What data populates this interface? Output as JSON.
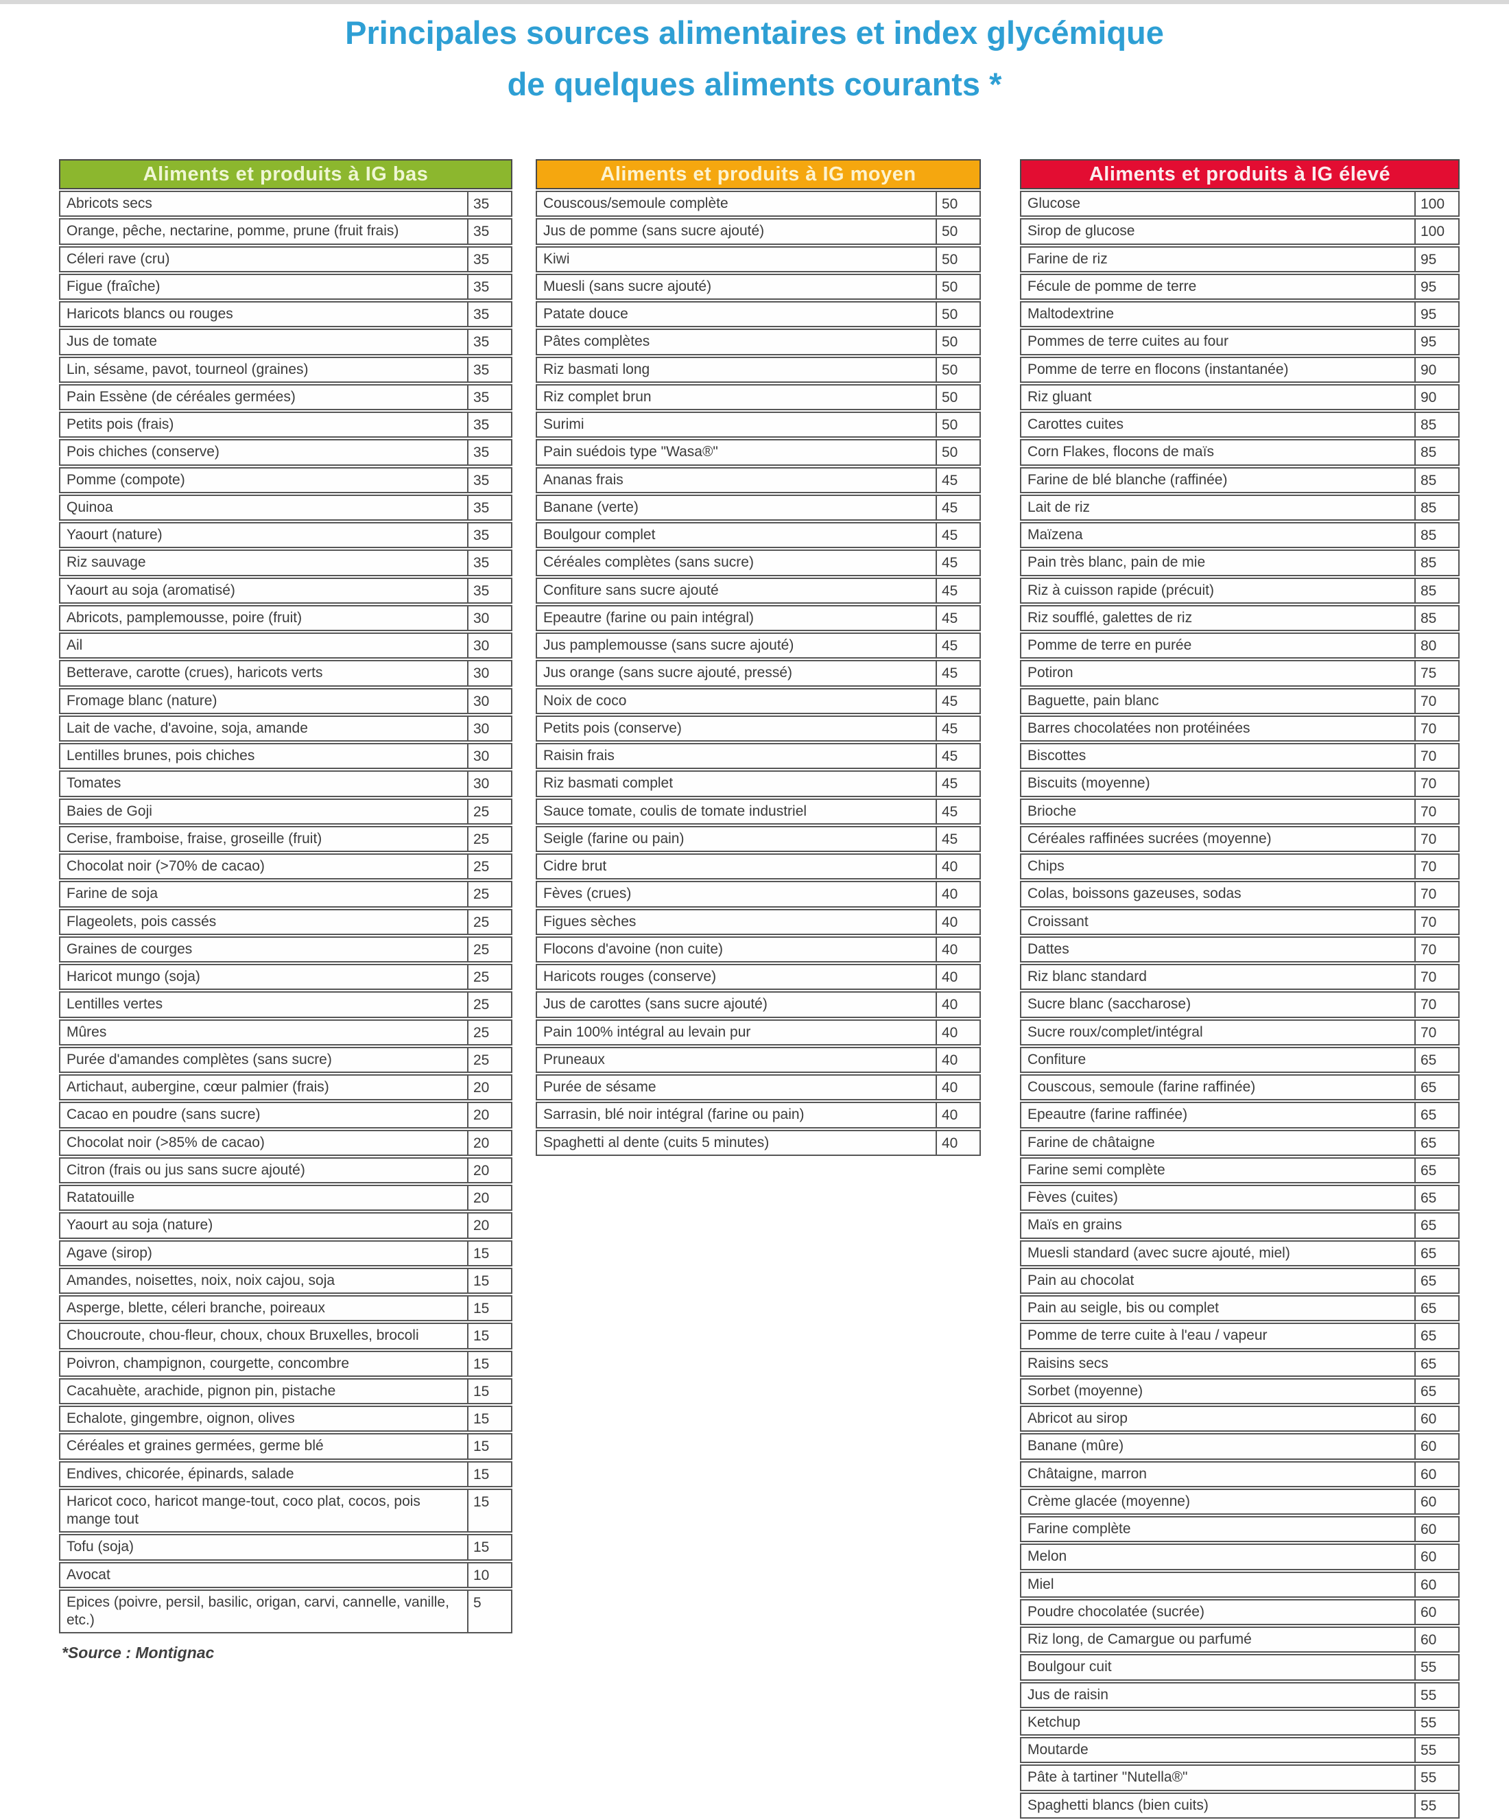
{
  "title": {
    "line1": "Principales sources alimentaires et index glycémique",
    "line2": "de quelques aliments courants *"
  },
  "source_note": "*Source : Montignac",
  "palette": {
    "title_blue": "#2E9FD4",
    "row_text": "#3B3B3B",
    "border_gray": "#565656"
  },
  "columns": [
    {
      "id": "ig-bas",
      "header": "Aliments et produits à IG bas",
      "header_bg": "#8CB72E",
      "header_fg": "#EFF6D4",
      "rows": [
        [
          "Abricots secs",
          35
        ],
        [
          "Orange, pêche, nectarine, pomme, prune (fruit frais)",
          35
        ],
        [
          "Céleri rave (cru)",
          35
        ],
        [
          "Figue (fraîche)",
          35
        ],
        [
          "Haricots blancs ou rouges",
          35
        ],
        [
          "Jus de tomate",
          35
        ],
        [
          "Lin, sésame, pavot, tourneol (graines)",
          35
        ],
        [
          "Pain Essène (de céréales germées)",
          35
        ],
        [
          "Petits pois (frais)",
          35
        ],
        [
          "Pois chiches (conserve)",
          35
        ],
        [
          "Pomme (compote)",
          35
        ],
        [
          "Quinoa",
          35
        ],
        [
          "Yaourt (nature)",
          35
        ],
        [
          "Riz sauvage",
          35
        ],
        [
          "Yaourt au soja (aromatisé)",
          35
        ],
        [
          "Abricots, pamplemousse, poire (fruit)",
          30
        ],
        [
          "Ail",
          30
        ],
        [
          "Betterave, carotte (crues), haricots verts",
          30
        ],
        [
          "Fromage blanc (nature)",
          30
        ],
        [
          "Lait de vache, d'avoine, soja, amande",
          30
        ],
        [
          "Lentilles brunes, pois chiches",
          30
        ],
        [
          "Tomates",
          30
        ],
        [
          "Baies de Goji",
          25
        ],
        [
          "Cerise, framboise, fraise, groseille (fruit)",
          25
        ],
        [
          "Chocolat noir (>70% de cacao)",
          25
        ],
        [
          "Farine de soja",
          25
        ],
        [
          "Flageolets, pois cassés",
          25
        ],
        [
          "Graines de courges",
          25
        ],
        [
          "Haricot mungo (soja)",
          25
        ],
        [
          "Lentilles vertes",
          25
        ],
        [
          "Mûres",
          25
        ],
        [
          "Purée d'amandes complètes (sans sucre)",
          25
        ],
        [
          "Artichaut, aubergine, cœur palmier (frais)",
          20
        ],
        [
          "Cacao en poudre (sans sucre)",
          20
        ],
        [
          "Chocolat noir (>85% de cacao)",
          20
        ],
        [
          "Citron (frais ou jus sans sucre ajouté)",
          20
        ],
        [
          "Ratatouille",
          20
        ],
        [
          "Yaourt au soja (nature)",
          20
        ],
        [
          "Agave (sirop)",
          15
        ],
        [
          "Amandes, noisettes, noix, noix cajou, soja",
          15
        ],
        [
          "Asperge, blette, céleri branche, poireaux",
          15
        ],
        [
          "Choucroute, chou-fleur, choux, choux Bruxelles, brocoli",
          15
        ],
        [
          "Poivron, champignon, courgette, concombre",
          15
        ],
        [
          "Cacahuète, arachide, pignon pin, pistache",
          15
        ],
        [
          "Echalote, gingembre, oignon, olives",
          15
        ],
        [
          "Céréales et graines germées, germe blé",
          15
        ],
        [
          "Endives, chicorée, épinards, salade",
          15
        ],
        [
          "Haricot coco, haricot mange-tout, coco plat, cocos, pois mange tout",
          15
        ],
        [
          "Tofu (soja)",
          15
        ],
        [
          "Avocat",
          10
        ],
        [
          "Epices (poivre, persil, basilic, origan, carvi, cannelle, vanille, etc.)",
          5
        ]
      ]
    },
    {
      "id": "ig-moyen",
      "header": "Aliments et produits à IG moyen",
      "header_bg": "#F5A70F",
      "header_fg": "#FDF3CF",
      "rows": [
        [
          "Couscous/semoule complète",
          50
        ],
        [
          "Jus de pomme (sans sucre ajouté)",
          50
        ],
        [
          "Kiwi",
          50
        ],
        [
          "Muesli (sans sucre ajouté)",
          50
        ],
        [
          "Patate douce",
          50
        ],
        [
          "Pâtes complètes",
          50
        ],
        [
          "Riz basmati long",
          50
        ],
        [
          "Riz complet brun",
          50
        ],
        [
          "Surimi",
          50
        ],
        [
          "Pain suédois type \"Wasa®\"",
          50
        ],
        [
          "Ananas frais",
          45
        ],
        [
          "Banane (verte)",
          45
        ],
        [
          "Boulgour complet",
          45
        ],
        [
          "Céréales complètes (sans sucre)",
          45
        ],
        [
          "Confiture sans sucre ajouté",
          45
        ],
        [
          "Epeautre (farine ou pain intégral)",
          45
        ],
        [
          "Jus pamplemousse (sans sucre ajouté)",
          45
        ],
        [
          "Jus orange (sans sucre ajouté, pressé)",
          45
        ],
        [
          "Noix de coco",
          45
        ],
        [
          "Petits pois (conserve)",
          45
        ],
        [
          "Raisin frais",
          45
        ],
        [
          "Riz basmati complet",
          45
        ],
        [
          "Sauce tomate, coulis de tomate industriel",
          45
        ],
        [
          "Seigle (farine ou pain)",
          45
        ],
        [
          "Cidre brut",
          40
        ],
        [
          "Fèves (crues)",
          40
        ],
        [
          "Figues sèches",
          40
        ],
        [
          "Flocons d'avoine (non cuite)",
          40
        ],
        [
          "Haricots rouges (conserve)",
          40
        ],
        [
          "Jus de carottes (sans sucre ajouté)",
          40
        ],
        [
          "Pain 100% intégral au levain pur",
          40
        ],
        [
          "Pruneaux",
          40
        ],
        [
          "Purée de sésame",
          40
        ],
        [
          "Sarrasin, blé noir intégral (farine ou pain)",
          40
        ],
        [
          "Spaghetti al dente (cuits 5 minutes)",
          40
        ]
      ]
    },
    {
      "id": "ig-eleve",
      "header": "Aliments et produits à IG élevé",
      "header_bg": "#E30D32",
      "header_fg": "#FBEDEE",
      "rows": [
        [
          "Glucose",
          100
        ],
        [
          "Sirop de glucose",
          100
        ],
        [
          "Farine de riz",
          95
        ],
        [
          "Fécule de pomme de terre",
          95
        ],
        [
          "Maltodextrine",
          95
        ],
        [
          "Pommes de terre cuites au four",
          95
        ],
        [
          "Pomme de terre en flocons (instantanée)",
          90
        ],
        [
          "Riz gluant",
          90
        ],
        [
          "Carottes cuites",
          85
        ],
        [
          "Corn Flakes, flocons de maïs",
          85
        ],
        [
          "Farine de blé blanche (raffinée)",
          85
        ],
        [
          "Lait de riz",
          85
        ],
        [
          "Maïzena",
          85
        ],
        [
          "Pain très blanc, pain de mie",
          85
        ],
        [
          "Riz à cuisson rapide (précuit)",
          85
        ],
        [
          "Riz soufflé, galettes de riz",
          85
        ],
        [
          "Pomme de terre en purée",
          80
        ],
        [
          "Potiron",
          75
        ],
        [
          "Baguette, pain blanc",
          70
        ],
        [
          "Barres chocolatées non protéinées",
          70
        ],
        [
          "Biscottes",
          70
        ],
        [
          "Biscuits (moyenne)",
          70
        ],
        [
          "Brioche",
          70
        ],
        [
          "Céréales raffinées sucrées (moyenne)",
          70
        ],
        [
          "Chips",
          70
        ],
        [
          "Colas, boissons gazeuses, sodas",
          70
        ],
        [
          "Croissant",
          70
        ],
        [
          "Dattes",
          70
        ],
        [
          "Riz blanc standard",
          70
        ],
        [
          "Sucre blanc (saccharose)",
          70
        ],
        [
          "Sucre roux/complet/intégral",
          70
        ],
        [
          "Confiture",
          65
        ],
        [
          "Couscous, semoule (farine raffinée)",
          65
        ],
        [
          "Epeautre (farine raffinée)",
          65
        ],
        [
          "Farine de châtaigne",
          65
        ],
        [
          "Farine semi complète",
          65
        ],
        [
          "Fèves (cuites)",
          65
        ],
        [
          "Maïs en grains",
          65
        ],
        [
          "Muesli standard (avec sucre ajouté, miel)",
          65
        ],
        [
          "Pain au chocolat",
          65
        ],
        [
          "Pain au seigle, bis ou complet",
          65
        ],
        [
          "Pomme de terre cuite à l'eau / vapeur",
          65
        ],
        [
          "Raisins secs",
          65
        ],
        [
          "Sorbet (moyenne)",
          65
        ],
        [
          "Abricot au sirop",
          60
        ],
        [
          "Banane (mûre)",
          60
        ],
        [
          "Châtaigne, marron",
          60
        ],
        [
          "Crème glacée (moyenne)",
          60
        ],
        [
          "Farine complète",
          60
        ],
        [
          "Melon",
          60
        ],
        [
          "Miel",
          60
        ],
        [
          "Poudre chocolatée (sucrée)",
          60
        ],
        [
          "Riz long, de Camargue ou parfumé",
          60
        ],
        [
          "Boulgour cuit",
          55
        ],
        [
          "Jus de raisin",
          55
        ],
        [
          "Ketchup",
          55
        ],
        [
          "Moutarde",
          55
        ],
        [
          "Pâte à tartiner \"Nutella®\"",
          55
        ],
        [
          "Spaghetti blancs (bien cuits)",
          55
        ]
      ]
    }
  ]
}
